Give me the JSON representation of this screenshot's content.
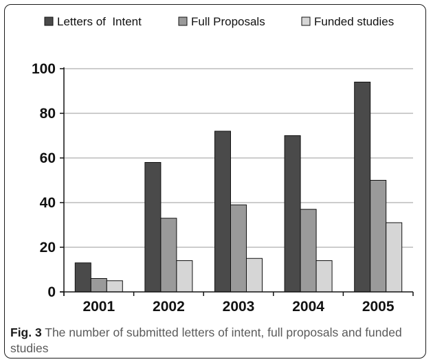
{
  "chart_data": {
    "type": "bar",
    "categories": [
      "2001",
      "2002",
      "2003",
      "2004",
      "2005"
    ],
    "series": [
      {
        "name": "Letters of  Intent",
        "color": "#4a4a4a",
        "values": [
          13,
          58,
          72,
          70,
          94
        ]
      },
      {
        "name": "Full Proposals",
        "color": "#9a9a9a",
        "values": [
          6,
          33,
          39,
          37,
          50
        ]
      },
      {
        "name": "Funded studies",
        "color": "#d6d6d6",
        "values": [
          5,
          14,
          15,
          14,
          31
        ]
      }
    ],
    "ylim": [
      0,
      100
    ],
    "yticks": [
      0,
      20,
      40,
      60,
      80,
      100
    ],
    "grid": true,
    "legend": "top"
  },
  "caption": {
    "label": "Fig. 3",
    "text": " The number of submitted letters of intent, full proposals and funded studies"
  }
}
